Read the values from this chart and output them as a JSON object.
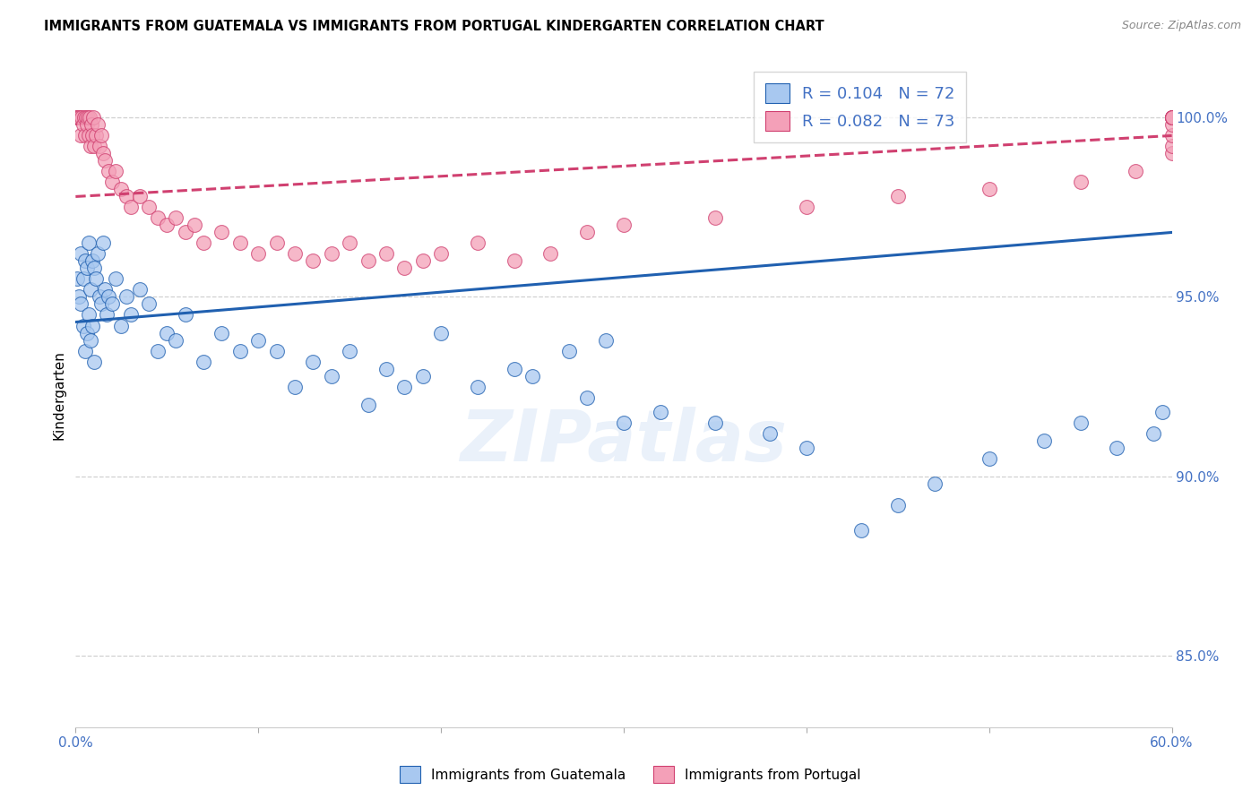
{
  "title": "IMMIGRANTS FROM GUATEMALA VS IMMIGRANTS FROM PORTUGAL KINDERGARTEN CORRELATION CHART",
  "source": "Source: ZipAtlas.com",
  "ylabel": "Kindergarten",
  "right_yticks": [
    100.0,
    95.0,
    90.0,
    85.0
  ],
  "right_ytick_labels": [
    "100.0%",
    "95.0%",
    "90.0%",
    "85.0%"
  ],
  "xlim": [
    0.0,
    60.0
  ],
  "ylim": [
    83.0,
    101.5
  ],
  "blue_R": 0.104,
  "blue_N": 72,
  "pink_R": 0.082,
  "pink_N": 73,
  "blue_color": "#a8c8f0",
  "pink_color": "#f4a0b8",
  "blue_line_color": "#2060b0",
  "pink_line_color": "#d04070",
  "watermark_text": "ZIPatlas",
  "blue_scatter_x": [
    0.1,
    0.2,
    0.3,
    0.3,
    0.4,
    0.4,
    0.5,
    0.5,
    0.6,
    0.6,
    0.7,
    0.7,
    0.8,
    0.8,
    0.9,
    0.9,
    1.0,
    1.0,
    1.1,
    1.2,
    1.3,
    1.4,
    1.5,
    1.6,
    1.7,
    1.8,
    2.0,
    2.2,
    2.5,
    2.8,
    3.0,
    3.5,
    4.0,
    4.5,
    5.0,
    5.5,
    6.0,
    7.0,
    8.0,
    9.0,
    10.0,
    11.0,
    12.0,
    13.0,
    14.0,
    15.0,
    16.0,
    17.0,
    18.0,
    19.0,
    20.0,
    22.0,
    24.0,
    25.0,
    27.0,
    28.0,
    29.0,
    30.0,
    32.0,
    35.0,
    38.0,
    40.0,
    43.0,
    45.0,
    47.0,
    50.0,
    53.0,
    55.0,
    57.0,
    59.0,
    59.5,
    60.0
  ],
  "blue_scatter_y": [
    95.5,
    95.0,
    96.2,
    94.8,
    95.5,
    94.2,
    96.0,
    93.5,
    95.8,
    94.0,
    96.5,
    94.5,
    95.2,
    93.8,
    96.0,
    94.2,
    95.8,
    93.2,
    95.5,
    96.2,
    95.0,
    94.8,
    96.5,
    95.2,
    94.5,
    95.0,
    94.8,
    95.5,
    94.2,
    95.0,
    94.5,
    95.2,
    94.8,
    93.5,
    94.0,
    93.8,
    94.5,
    93.2,
    94.0,
    93.5,
    93.8,
    93.5,
    92.5,
    93.2,
    92.8,
    93.5,
    92.0,
    93.0,
    92.5,
    92.8,
    94.0,
    92.5,
    93.0,
    92.8,
    93.5,
    92.2,
    93.8,
    91.5,
    91.8,
    91.5,
    91.2,
    90.8,
    88.5,
    89.2,
    89.8,
    90.5,
    91.0,
    91.5,
    90.8,
    91.2,
    91.8,
    100.0
  ],
  "pink_scatter_x": [
    0.05,
    0.1,
    0.15,
    0.2,
    0.25,
    0.3,
    0.35,
    0.4,
    0.45,
    0.5,
    0.55,
    0.6,
    0.65,
    0.7,
    0.75,
    0.8,
    0.85,
    0.9,
    0.95,
    1.0,
    1.1,
    1.2,
    1.3,
    1.4,
    1.5,
    1.6,
    1.8,
    2.0,
    2.2,
    2.5,
    2.8,
    3.0,
    3.5,
    4.0,
    4.5,
    5.0,
    5.5,
    6.0,
    6.5,
    7.0,
    8.0,
    9.0,
    10.0,
    11.0,
    12.0,
    13.0,
    14.0,
    15.0,
    16.0,
    17.0,
    18.0,
    19.0,
    20.0,
    22.0,
    24.0,
    26.0,
    28.0,
    30.0,
    35.0,
    40.0,
    45.0,
    50.0,
    55.0,
    58.0,
    60.0,
    60.0,
    60.0,
    60.0,
    60.0,
    60.0,
    60.0,
    60.0,
    60.0
  ],
  "pink_scatter_y": [
    100.0,
    100.0,
    100.0,
    100.0,
    100.0,
    99.5,
    100.0,
    99.8,
    100.0,
    99.5,
    100.0,
    99.8,
    100.0,
    99.5,
    100.0,
    99.2,
    99.8,
    99.5,
    100.0,
    99.2,
    99.5,
    99.8,
    99.2,
    99.5,
    99.0,
    98.8,
    98.5,
    98.2,
    98.5,
    98.0,
    97.8,
    97.5,
    97.8,
    97.5,
    97.2,
    97.0,
    97.2,
    96.8,
    97.0,
    96.5,
    96.8,
    96.5,
    96.2,
    96.5,
    96.2,
    96.0,
    96.2,
    96.5,
    96.0,
    96.2,
    95.8,
    96.0,
    96.2,
    96.5,
    96.0,
    96.2,
    96.8,
    97.0,
    97.2,
    97.5,
    97.8,
    98.0,
    98.2,
    98.5,
    99.0,
    99.2,
    99.5,
    99.8,
    100.0,
    100.0,
    100.0,
    100.0,
    100.0
  ]
}
